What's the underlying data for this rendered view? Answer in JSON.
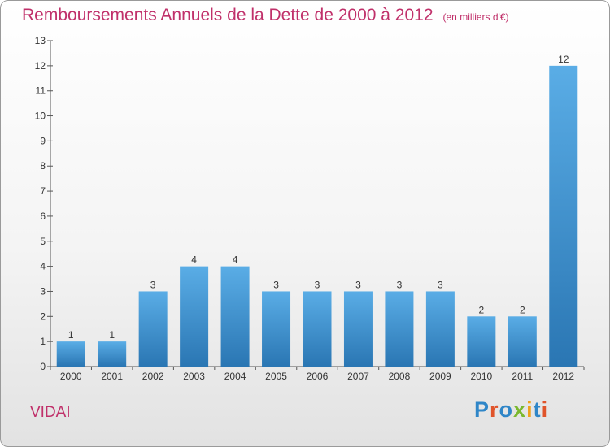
{
  "header": {
    "title": "Remboursements Annuels de la Dette de 2000 à 2012",
    "unit": "(en milliers d'€)"
  },
  "footer": {
    "commune": "VIDAI",
    "logo": "Proxiti"
  },
  "colors": {
    "title": "#c0306a",
    "bar_light": "#5aade6",
    "bar_dark": "#2a76b3",
    "logo_letters": [
      "#2f86c8",
      "#e0542b",
      "#2f86c8",
      "#7bb82e",
      "#f0a11c",
      "#2f86c8",
      "#e0542b"
    ]
  },
  "chart_data": {
    "type": "bar",
    "title": "Remboursements Annuels de la Dette de 2000 à 2012",
    "xlabel": "",
    "ylabel": "",
    "categories": [
      "2000",
      "2001",
      "2002",
      "2003",
      "2004",
      "2005",
      "2006",
      "2007",
      "2008",
      "2009",
      "2010",
      "2011",
      "2012"
    ],
    "values": [
      1,
      1,
      3,
      4,
      4,
      3,
      3,
      3,
      3,
      3,
      2,
      2,
      12
    ],
    "ylim": [
      0,
      13
    ],
    "yticks": [
      0,
      1,
      2,
      3,
      4,
      5,
      6,
      7,
      8,
      9,
      10,
      11,
      12,
      13
    ],
    "grid": false,
    "data_labels": true
  }
}
